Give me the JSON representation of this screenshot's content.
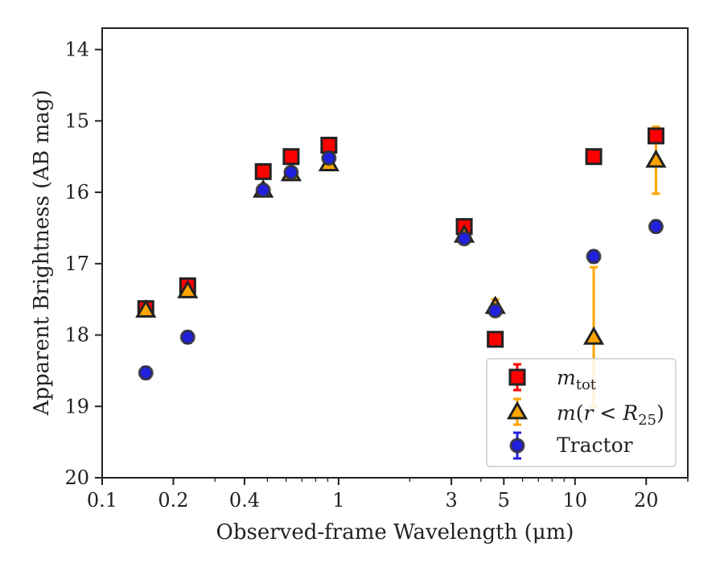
{
  "chart_data": {
    "type": "scatter",
    "xscale": "log",
    "yaxis_inverted": true,
    "xlabel": "Observed-frame Wavelength (μm)",
    "ylabel": "Apparent Brightness (AB mag)",
    "xlim": [
      0.1,
      30
    ],
    "ylim": [
      20,
      13.7
    ],
    "xticks": [
      {
        "value": 0.1,
        "label": "0.1"
      },
      {
        "value": 0.2,
        "label": "0.2"
      },
      {
        "value": 0.4,
        "label": "0.4"
      },
      {
        "value": 1,
        "label": "1"
      },
      {
        "value": 3,
        "label": "3"
      },
      {
        "value": 5,
        "label": "5"
      },
      {
        "value": 10,
        "label": "10"
      },
      {
        "value": 20,
        "label": "20"
      }
    ],
    "yticks": [
      {
        "value": 14,
        "label": "14"
      },
      {
        "value": 15,
        "label": "15"
      },
      {
        "value": 16,
        "label": "16"
      },
      {
        "value": 17,
        "label": "17"
      },
      {
        "value": 18,
        "label": "18"
      },
      {
        "value": 19,
        "label": "19"
      },
      {
        "value": 20,
        "label": "20"
      }
    ],
    "legend_position": "lower-right",
    "series": [
      {
        "name": "m_tot",
        "marker": "square",
        "fill": "#ff0000",
        "errcolor": "#ff0000",
        "points": [
          {
            "x": 0.153,
            "y": 17.63,
            "err": 0.04
          },
          {
            "x": 0.23,
            "y": 17.31,
            "err": 0.04
          },
          {
            "x": 0.48,
            "y": 15.71,
            "err": 0.04
          },
          {
            "x": 0.63,
            "y": 15.5,
            "err": 0.04
          },
          {
            "x": 0.91,
            "y": 15.34,
            "err": 0.04
          },
          {
            "x": 3.4,
            "y": 16.48,
            "err": 0.04
          },
          {
            "x": 4.6,
            "y": 18.06,
            "err": 0.04
          },
          {
            "x": 12.0,
            "y": 15.5,
            "err": 0.04
          },
          {
            "x": 22.0,
            "y": 15.21,
            "err": 0.1
          }
        ]
      },
      {
        "name": "m(r<R25)",
        "marker": "triangle",
        "fill": "#ffa500",
        "errcolor": "#ffa500",
        "points": [
          {
            "x": 0.153,
            "y": 17.65,
            "err": 0.04
          },
          {
            "x": 0.23,
            "y": 17.38,
            "err": 0.04
          },
          {
            "x": 0.48,
            "y": 15.97,
            "err": 0.04
          },
          {
            "x": 0.63,
            "y": 15.74,
            "err": 0.04
          },
          {
            "x": 0.91,
            "y": 15.6,
            "err": 0.04
          },
          {
            "x": 3.4,
            "y": 16.6,
            "err": 0.04
          },
          {
            "x": 4.6,
            "y": 17.6,
            "err": 0.1
          },
          {
            "x": 12.0,
            "y": 18.03,
            "err": 0.98
          },
          {
            "x": 22.0,
            "y": 15.55,
            "err": 0.47
          }
        ]
      },
      {
        "name": "Tractor",
        "marker": "circle",
        "fill": "#2020dd",
        "errcolor": "#2020dd",
        "points": [
          {
            "x": 0.153,
            "y": 18.53,
            "err": 0.08
          },
          {
            "x": 0.23,
            "y": 18.03,
            "err": 0.08
          },
          {
            "x": 0.48,
            "y": 15.97,
            "err": 0.04
          },
          {
            "x": 0.63,
            "y": 15.72,
            "err": 0.04
          },
          {
            "x": 0.91,
            "y": 15.52,
            "err": 0.04
          },
          {
            "x": 3.4,
            "y": 16.65,
            "err": 0.04
          },
          {
            "x": 4.6,
            "y": 17.66,
            "err": 0.04
          },
          {
            "x": 12.0,
            "y": 16.9,
            "err": 0.08
          },
          {
            "x": 22.0,
            "y": 16.48,
            "err": 0.08
          }
        ]
      }
    ],
    "legend": [
      {
        "key": "mtot",
        "series": 0
      },
      {
        "key": "mr25",
        "series": 1
      },
      {
        "key": "tractor",
        "series": 2,
        "label": "Tractor"
      }
    ]
  }
}
